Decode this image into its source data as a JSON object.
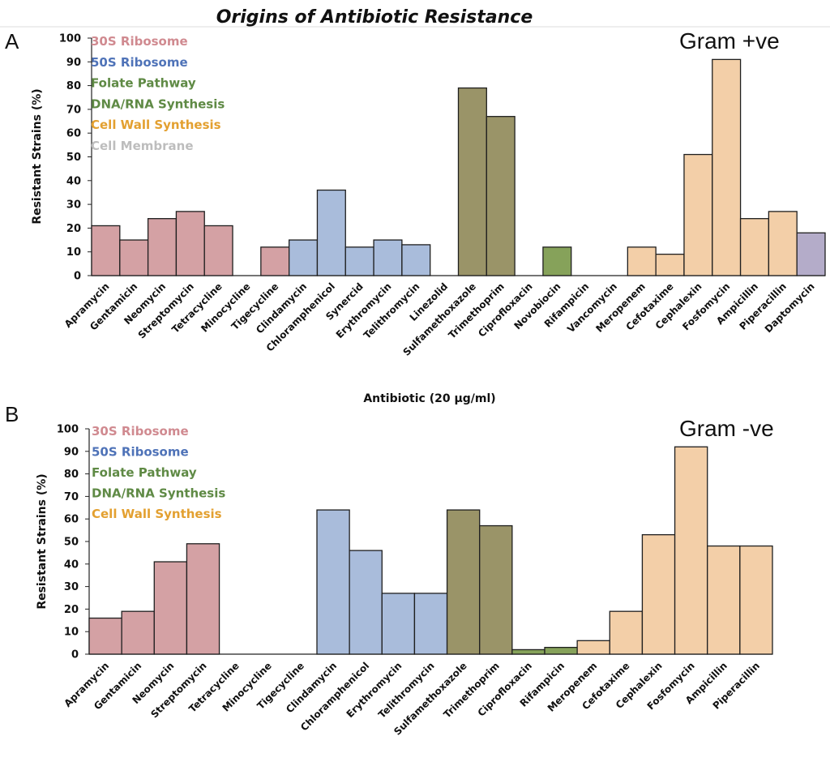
{
  "title": "Origins of Antibiotic Resistance",
  "colors": {
    "30S Ribosome": "#d4a1a4",
    "50S Ribosome": "#a9bcdb",
    "Folate Pathway": "#9a9468",
    "DNA/RNA Synthesis": "#86a25a",
    "Cell Wall Synthesis": "#f3cfa8",
    "Cell Membrane": "#b4acc9"
  },
  "legend_text_colors": {
    "30S Ribosome": "#d08a90",
    "50S Ribosome": "#4f73b8",
    "Folate Pathway": "#5f8a45",
    "DNA/RNA Synthesis": "#5f8a45",
    "Cell Wall Synthesis": "#e3a030",
    "Cell Membrane": "#bdbdbd"
  },
  "chart_data": [
    {
      "type": "bar",
      "panel": "A",
      "annotation": "Gram +ve",
      "xlabel": "Antibiotic (20 µg/ml)",
      "ylabel": "Resistant Strains (%)",
      "ylim": [
        0,
        100
      ],
      "yticks": [
        0,
        10,
        20,
        30,
        40,
        50,
        60,
        70,
        80,
        90,
        100
      ],
      "legend": [
        "30S Ribosome",
        "50S Ribosome",
        "Folate Pathway",
        "DNA/RNA Synthesis",
        "Cell Wall Synthesis",
        "Cell Membrane"
      ],
      "categories": [
        "Apramycin",
        "Gentamicin",
        "Neomycin",
        "Streptomycin",
        "Tetracycline",
        "Minocycline",
        "Tigecycline",
        "Clindamycin",
        "Chloramphenicol",
        "Synercid",
        "Erythromycin",
        "Telithromycin",
        "Linezolid",
        "Sulfamethoxazole",
        "Trimethoprim",
        "Ciprofloxacin",
        "Novobiocin",
        "Rifampicin",
        "Vancomycin",
        "Meropenem",
        "Cefotaxime",
        "Cephalexin",
        "Fosfomycin",
        "Ampicillin",
        "Piperacillin",
        "Daptomycin"
      ],
      "values": [
        21,
        15,
        24,
        27,
        21,
        0,
        12,
        15,
        36,
        12,
        15,
        13,
        0,
        79,
        67,
        0,
        12,
        0,
        0,
        12,
        9,
        51,
        91,
        24,
        27,
        18
      ],
      "groups": [
        "30S Ribosome",
        "30S Ribosome",
        "30S Ribosome",
        "30S Ribosome",
        "30S Ribosome",
        "30S Ribosome",
        "30S Ribosome",
        "50S Ribosome",
        "50S Ribosome",
        "50S Ribosome",
        "50S Ribosome",
        "50S Ribosome",
        "50S Ribosome",
        "Folate Pathway",
        "Folate Pathway",
        "DNA/RNA Synthesis",
        "DNA/RNA Synthesis",
        "DNA/RNA Synthesis",
        "Cell Wall Synthesis",
        "Cell Wall Synthesis",
        "Cell Wall Synthesis",
        "Cell Wall Synthesis",
        "Cell Wall Synthesis",
        "Cell Wall Synthesis",
        "Cell Wall Synthesis",
        "Cell Membrane"
      ]
    },
    {
      "type": "bar",
      "panel": "B",
      "annotation": "Gram -ve",
      "xlabel": "",
      "ylabel": "Resistant Strains (%)",
      "ylim": [
        0,
        100
      ],
      "yticks": [
        0,
        10,
        20,
        30,
        40,
        50,
        60,
        70,
        80,
        90,
        100
      ],
      "legend": [
        "30S Ribosome",
        "50S Ribosome",
        "Folate Pathway",
        "DNA/RNA Synthesis",
        "Cell Wall Synthesis"
      ],
      "categories": [
        "Apramycin",
        "Gentamicin",
        "Neomycin",
        "Streptomycin",
        "Tetracycline",
        "Minocycline",
        "Tigecycline",
        "Clindamycin",
        "Chloramphenicol",
        "Erythromycin",
        "Telithromycin",
        "Sulfamethoxazole",
        "Trimethoprim",
        "Ciprofloxacin",
        "Rifampicin",
        "Meropenem",
        "Cefotaxime",
        "Cephalexin",
        "Fosfomycin",
        "Ampicillin",
        "Piperacillin"
      ],
      "values": [
        16,
        19,
        41,
        49,
        0,
        0,
        0,
        64,
        46,
        27,
        27,
        64,
        57,
        2,
        3,
        6,
        19,
        53,
        92,
        48,
        48
      ],
      "groups": [
        "30S Ribosome",
        "30S Ribosome",
        "30S Ribosome",
        "30S Ribosome",
        "30S Ribosome",
        "30S Ribosome",
        "30S Ribosome",
        "50S Ribosome",
        "50S Ribosome",
        "50S Ribosome",
        "50S Ribosome",
        "Folate Pathway",
        "Folate Pathway",
        "DNA/RNA Synthesis",
        "DNA/RNA Synthesis",
        "Cell Wall Synthesis",
        "Cell Wall Synthesis",
        "Cell Wall Synthesis",
        "Cell Wall Synthesis",
        "Cell Wall Synthesis",
        "Cell Wall Synthesis"
      ]
    }
  ]
}
